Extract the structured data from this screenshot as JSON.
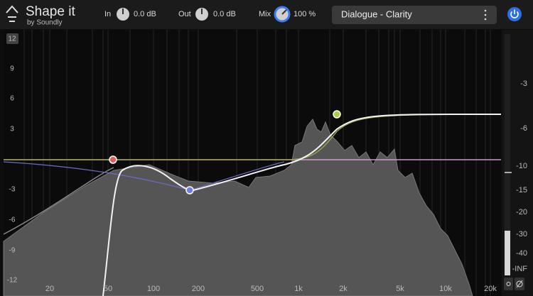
{
  "header": {
    "logo": {
      "title": "Shape it",
      "subtitle": "by Soundly"
    },
    "controls": [
      {
        "label": "In",
        "value": "0.0 dB"
      },
      {
        "label": "Out",
        "value": "0.0 dB"
      },
      {
        "label": "Mix",
        "value": "100 %"
      }
    ],
    "preset": "Dialogue - Clarity"
  },
  "graph": {
    "gain_labels": [
      "12",
      "9",
      "6",
      "3",
      "-3",
      "-6",
      "-9",
      "-12"
    ],
    "frequency_labels": [
      "20",
      "50",
      "100",
      "200",
      "500",
      "1k",
      "2k",
      "5k",
      "10k",
      "20k"
    ],
    "meter_labels": [
      "-3",
      "-6",
      "-10",
      "-15",
      "-20",
      "-30",
      "-40",
      "-INF"
    ]
  }
}
